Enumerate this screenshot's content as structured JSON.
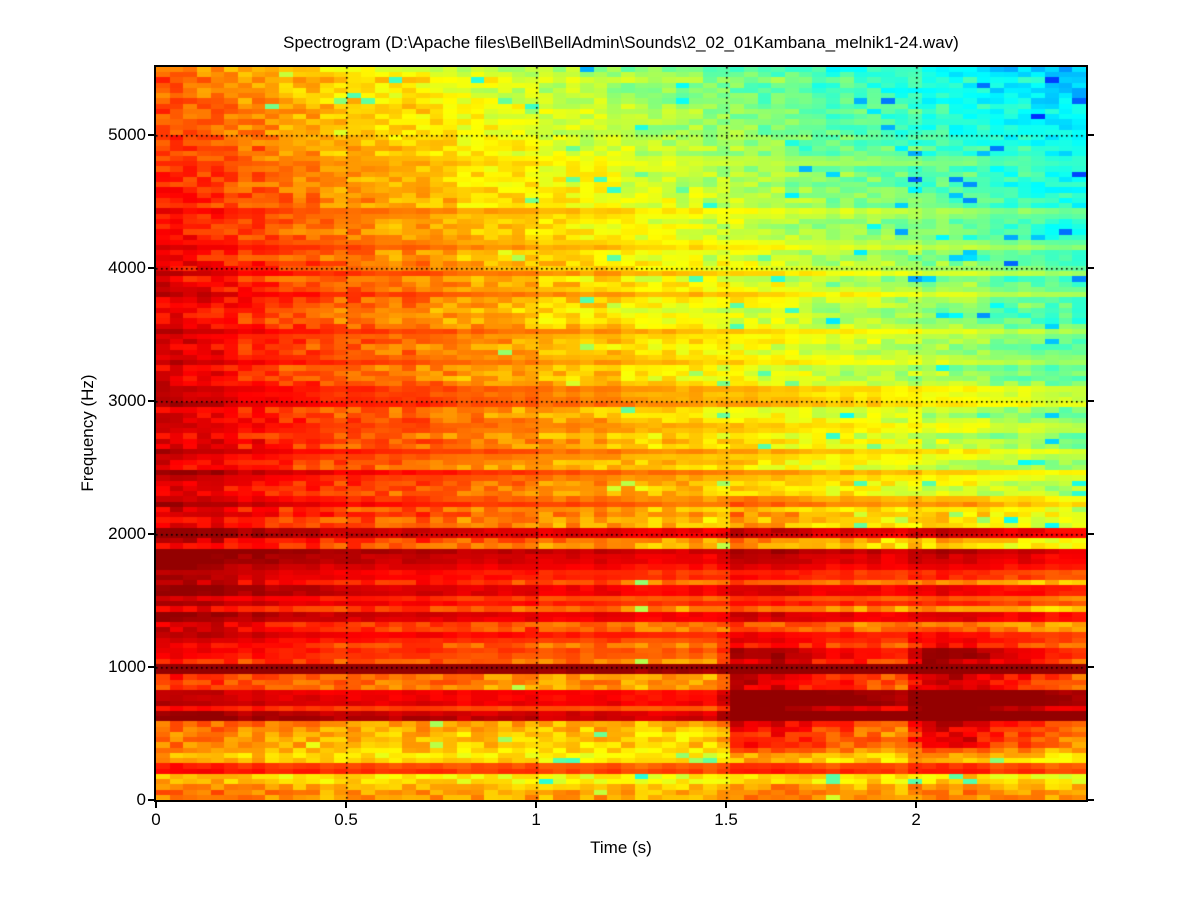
{
  "figure": {
    "background": "#ffffff",
    "axis_color": "#000000",
    "text_color": "#000000"
  },
  "chart_data": {
    "type": "heatmap",
    "subtype": "spectrogram",
    "title": "Spectrogram (D:\\Apache files\\Bell\\BellAdmin\\Sounds\\2_02_01Kambana_melnik1-24.wav)",
    "xlabel": "Time (s)",
    "ylabel": "Frequency (Hz)",
    "xlim": [
      0,
      2.447
    ],
    "ylim": [
      0,
      5512
    ],
    "xticks": [
      {
        "v": 0,
        "label": "0"
      },
      {
        "v": 0.5,
        "label": "0.5"
      },
      {
        "v": 1,
        "label": "1"
      },
      {
        "v": 1.5,
        "label": "1.5"
      },
      {
        "v": 2,
        "label": "2"
      }
    ],
    "yticks": [
      {
        "v": 0,
        "label": "0"
      },
      {
        "v": 1000,
        "label": "1000"
      },
      {
        "v": 2000,
        "label": "2000"
      },
      {
        "v": 3000,
        "label": "3000"
      },
      {
        "v": 4000,
        "label": "4000"
      },
      {
        "v": 5000,
        "label": "5000"
      }
    ],
    "grid": {
      "style": "dotted",
      "color": "#000000",
      "dot_size": 1.6,
      "dot_step": 5
    },
    "colormap": "jet",
    "model": {
      "seed": 20240612,
      "time_bins": 68,
      "freq_bins": 140,
      "noise_amp": 0.045,
      "row_jitter": 0.022,
      "col_jitter": 0.012,
      "line_noise_scale": 0.35,
      "base_profile": [
        [
          0,
          0.72
        ],
        [
          100,
          0.69
        ],
        [
          160,
          0.65
        ],
        [
          280,
          0.65
        ],
        [
          420,
          0.7
        ],
        [
          650,
          0.745
        ],
        [
          900,
          0.765
        ],
        [
          1200,
          0.845
        ],
        [
          1700,
          0.875
        ],
        [
          2400,
          0.865
        ],
        [
          3200,
          0.86
        ],
        [
          4000,
          0.845
        ],
        [
          4600,
          0.81
        ],
        [
          5100,
          0.775
        ],
        [
          5512,
          0.735
        ]
      ],
      "decay_profile": [
        [
          0,
          0.012
        ],
        [
          300,
          0.024
        ],
        [
          800,
          0.038
        ],
        [
          1000,
          0.052
        ],
        [
          1500,
          0.09
        ],
        [
          2000,
          0.118
        ],
        [
          2500,
          0.138
        ],
        [
          3000,
          0.152
        ],
        [
          3600,
          0.162
        ],
        [
          4300,
          0.165
        ],
        [
          5512,
          0.166
        ]
      ],
      "partials": [
        [
          225,
          0.2,
          0.02
        ],
        [
          618,
          0.23,
          0.02
        ],
        [
          662,
          0.12,
          0.025
        ],
        [
          742,
          0.18,
          0.02
        ],
        [
          788,
          0.16,
          0.02
        ],
        [
          990,
          0.245,
          0.015
        ],
        [
          1105,
          0.06,
          0.05
        ],
        [
          1230,
          0.07,
          0.05
        ],
        [
          1380,
          0.11,
          0.04
        ],
        [
          1480,
          0.06,
          0.06
        ],
        [
          1572,
          0.1,
          0.05
        ],
        [
          1690,
          0.07,
          0.06
        ],
        [
          1782,
          0.1,
          0.045
        ],
        [
          1862,
          0.12,
          0.04
        ],
        [
          2012,
          0.1,
          0.04
        ],
        [
          2230,
          0.07,
          0.12
        ],
        [
          2455,
          0.09,
          0.13
        ],
        [
          2610,
          0.06,
          0.13
        ],
        [
          2800,
          0.05,
          0.13
        ],
        [
          2985,
          0.08,
          0.13
        ],
        [
          3075,
          0.06,
          0.13
        ],
        [
          3300,
          0.05,
          0.15
        ],
        [
          3520,
          0.06,
          0.15
        ],
        [
          3800,
          0.05,
          0.15
        ],
        [
          3960,
          0.05,
          0.15
        ],
        [
          4160,
          0.05,
          0.15
        ],
        [
          4420,
          0.04,
          0.15
        ],
        [
          4800,
          0.03,
          0.15
        ]
      ],
      "strikes": [
        {
          "time": 0.0,
          "f_low": 0,
          "f_high": 5512,
          "amp": 0.05,
          "attack": 0.02,
          "hold": 0.08,
          "release": 0.3,
          "broad_amp": 0,
          "broad_max": 0
        },
        {
          "time": 1.53,
          "f_low": 380,
          "f_high": 1150,
          "amp": 0.15,
          "attack": 0.05,
          "hold": 0.12,
          "release": 0.4,
          "broad_amp": 0.045,
          "broad_max": 2300
        },
        {
          "time": 2.02,
          "f_low": 380,
          "f_high": 1150,
          "amp": 0.14,
          "attack": 0.05,
          "hold": 0.12,
          "release": 0.4,
          "broad_amp": 0.04,
          "broad_max": 2300
        }
      ],
      "speckle": {
        "max_v": 0.72,
        "rate_base": 0.012,
        "rate_t": 0.05,
        "depth_min": 0.08,
        "depth_max": 0.22
      },
      "value_clip": [
        0.02,
        0.98
      ]
    }
  }
}
